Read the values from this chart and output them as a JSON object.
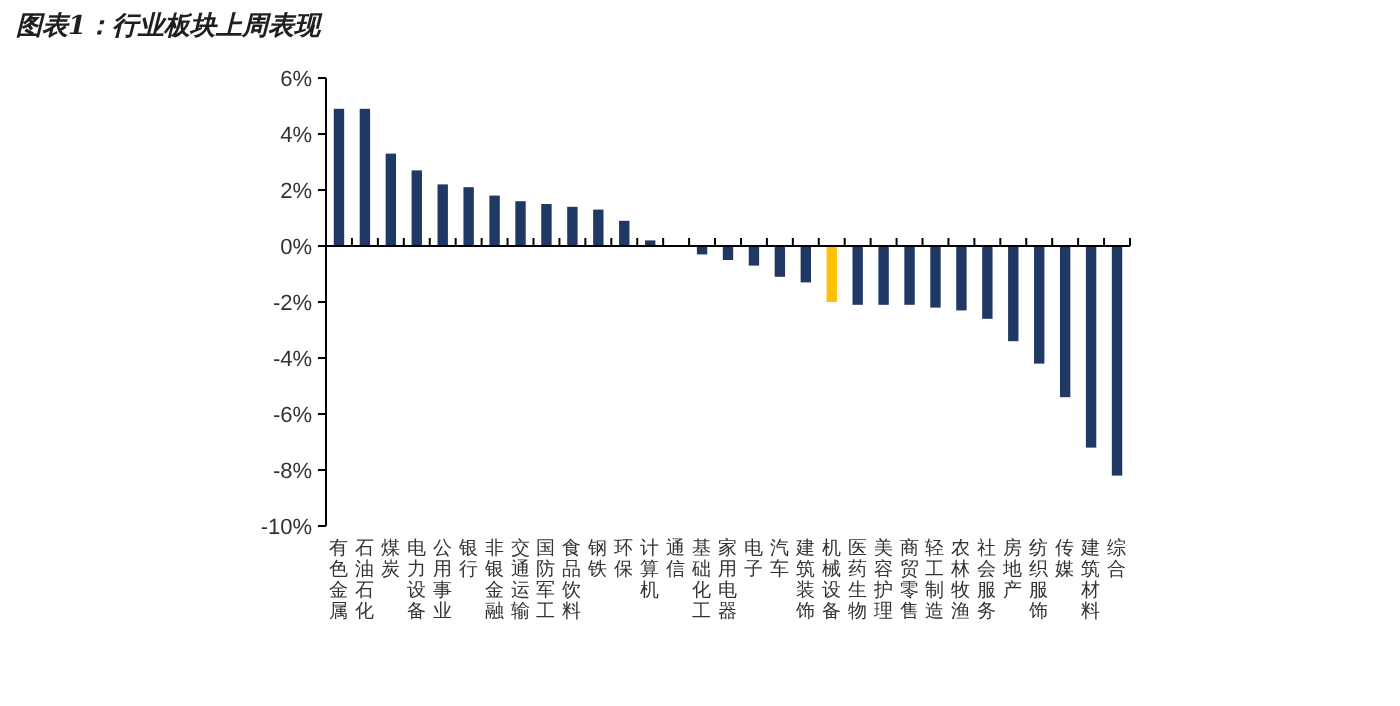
{
  "chart_data": {
    "type": "bar",
    "title": "图表1：行业板块上周表现",
    "categories": [
      "有色金属",
      "石油石化",
      "煤炭",
      "电力设备",
      "公用事业",
      "银行",
      "非银金融",
      "交通运输",
      "国防军工",
      "食品饮料",
      "钢铁",
      "环保",
      "计算机",
      "通信",
      "基础化工",
      "家用电器",
      "电子",
      "汽车",
      "建筑装饰",
      "机械设备",
      "医药生物",
      "美容护理",
      "商贸零售",
      "轻工制造",
      "农林牧渔",
      "社会服务",
      "房地产",
      "纺织服饰",
      "传媒",
      "建筑材料",
      "综合"
    ],
    "values": [
      4.9,
      4.9,
      3.3,
      2.7,
      2.2,
      2.1,
      1.8,
      1.6,
      1.5,
      1.4,
      1.3,
      0.9,
      0.2,
      0.02,
      -0.3,
      -0.5,
      -0.7,
      -1.1,
      -1.3,
      -2.0,
      -2.1,
      -2.1,
      -2.1,
      -2.2,
      -2.3,
      -2.6,
      -3.4,
      -4.2,
      -5.4,
      -7.2,
      -8.2
    ],
    "colors": [
      "#1f3864",
      "#1f3864",
      "#1f3864",
      "#1f3864",
      "#1f3864",
      "#1f3864",
      "#1f3864",
      "#1f3864",
      "#1f3864",
      "#1f3864",
      "#1f3864",
      "#1f3864",
      "#1f3864",
      "#1f3864",
      "#1f3864",
      "#1f3864",
      "#1f3864",
      "#1f3864",
      "#1f3864",
      "#ffc000",
      "#1f3864",
      "#1f3864",
      "#1f3864",
      "#1f3864",
      "#1f3864",
      "#1f3864",
      "#1f3864",
      "#1f3864",
      "#1f3864",
      "#1f3864",
      "#1f3864"
    ],
    "ylim": [
      -10,
      6
    ],
    "yticks": [
      {
        "value": 6,
        "label": "6%"
      },
      {
        "value": 4,
        "label": "4%"
      },
      {
        "value": 2,
        "label": "2%"
      },
      {
        "value": 0,
        "label": "0%"
      },
      {
        "value": -2,
        "label": "-2%"
      },
      {
        "value": -4,
        "label": "-4%"
      },
      {
        "value": -6,
        "label": "-6%"
      },
      {
        "value": -8,
        "label": "-8%"
      },
      {
        "value": -10,
        "label": "-10%"
      }
    ]
  }
}
